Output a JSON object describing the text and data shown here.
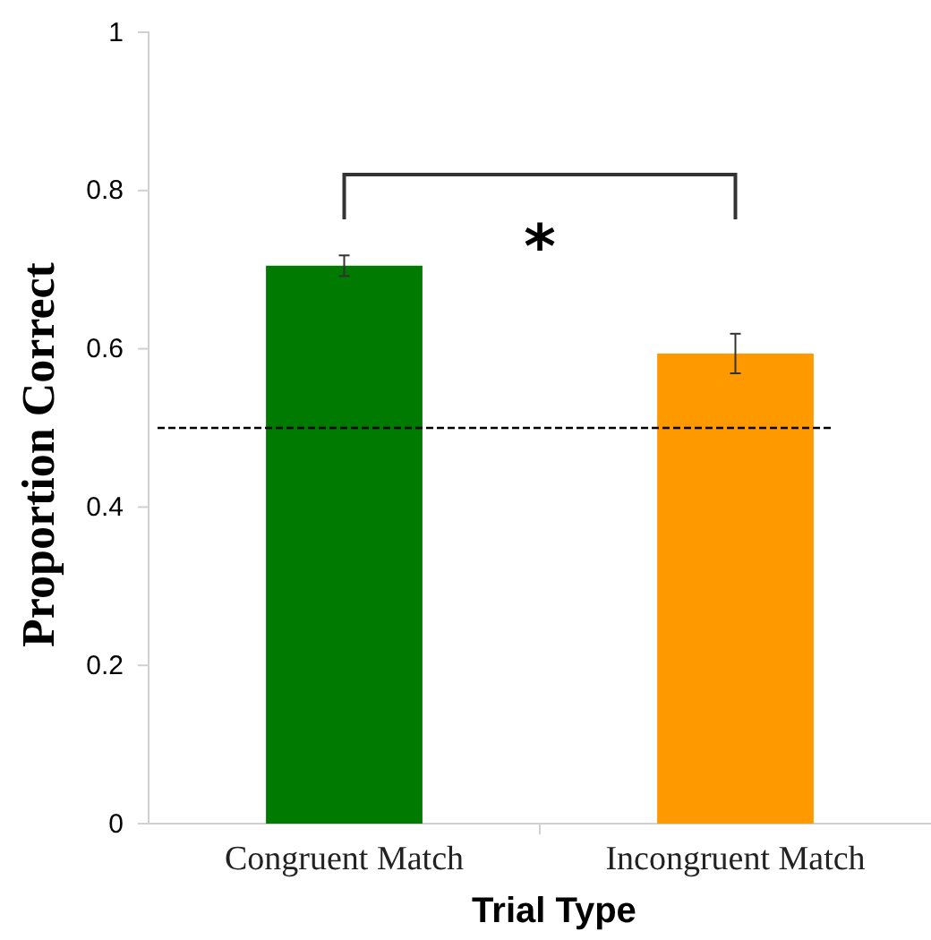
{
  "chart_data": {
    "type": "bar",
    "categories": [
      "Congruent Match",
      "Incongruent Match"
    ],
    "values": [
      0.705,
      0.594
    ],
    "colors": [
      "#007a00",
      "#ff9900"
    ],
    "errors": [
      0.013,
      0.025
    ],
    "xlabel": "Trial Type",
    "ylabel": "Proportion Correct",
    "ylim": [
      0,
      1
    ],
    "yticks": [
      0,
      0.2,
      0.4,
      0.6,
      0.8,
      1
    ],
    "ref_lines": [
      {
        "axis": "y",
        "value": 0.5,
        "line_style": "dashed",
        "color": "#000000"
      }
    ],
    "annotations": [
      "*"
    ],
    "grid": false
  }
}
